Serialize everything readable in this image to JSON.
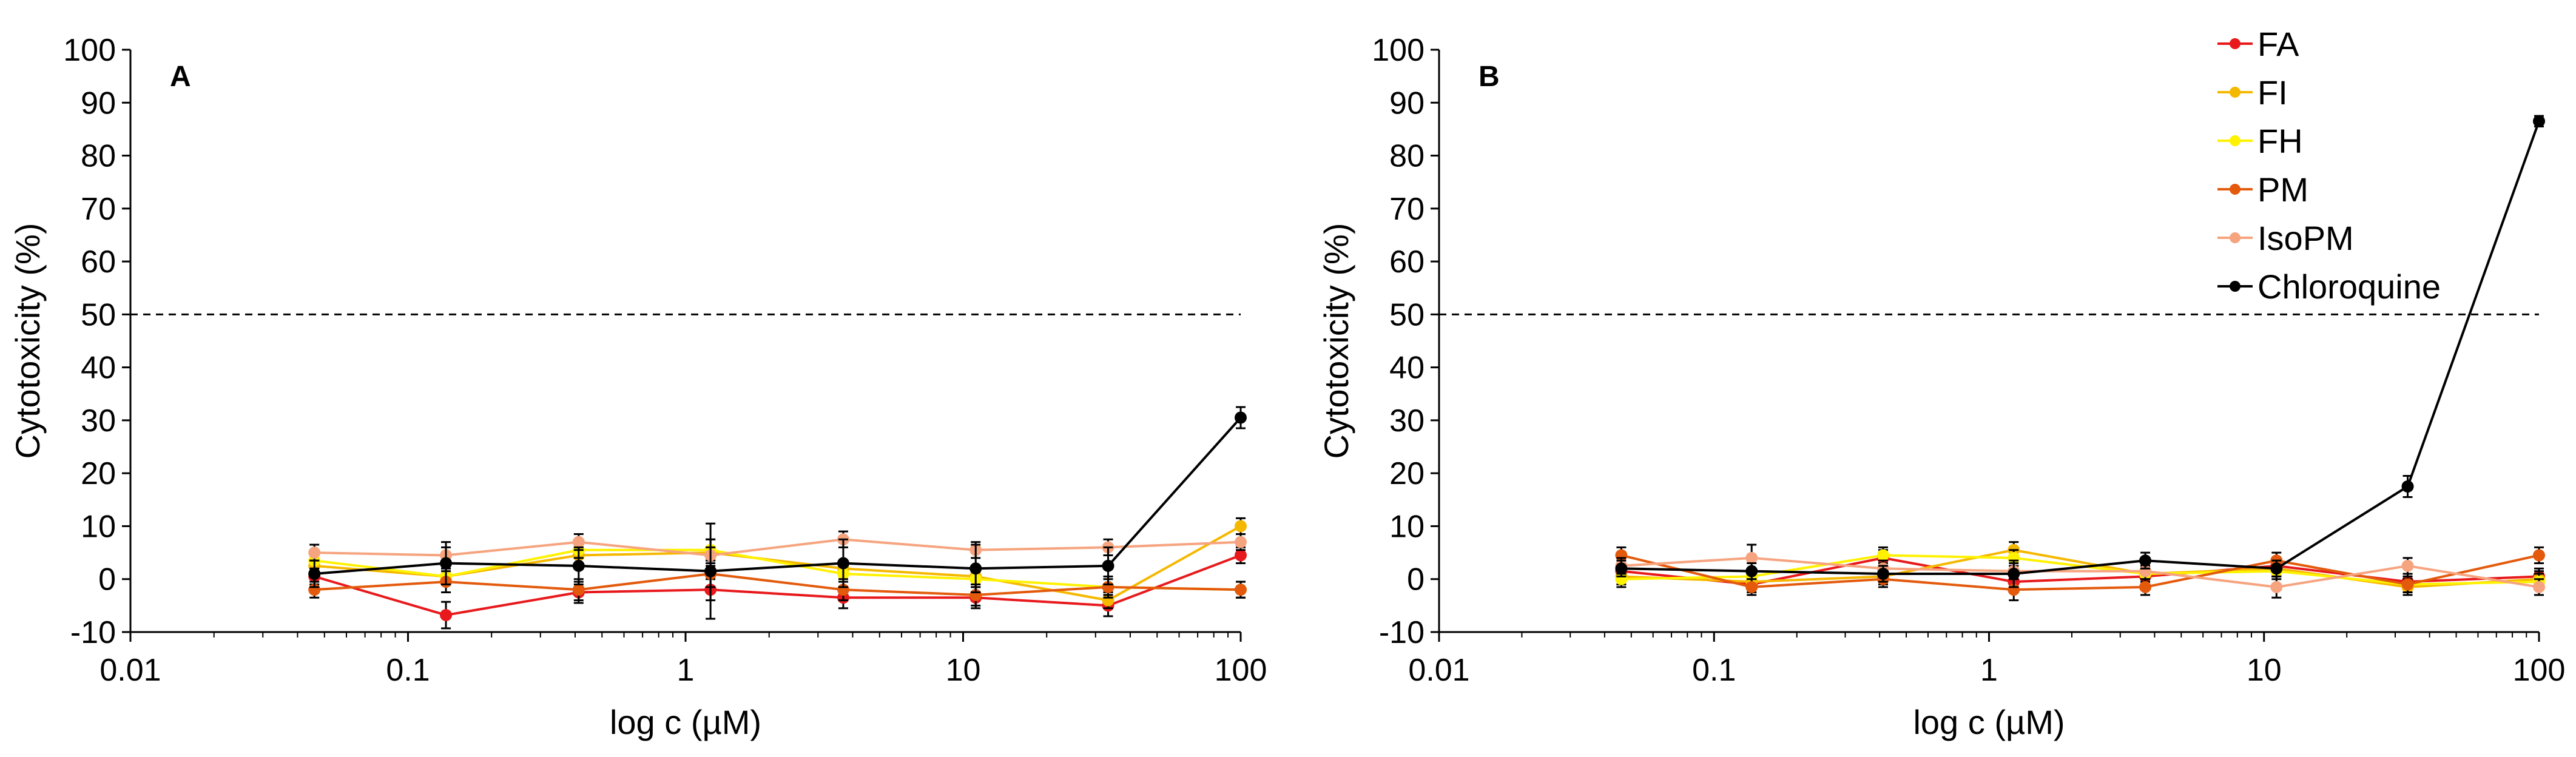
{
  "chart_data": [
    {
      "type": "line",
      "panel": "A",
      "xlabel": "log c (µM)",
      "ylabel": "Cytotoxicity (%)",
      "xscale": "log",
      "xlim": [
        0.01,
        100
      ],
      "ylim": [
        -10,
        100
      ],
      "x_ticks": [
        "0.01",
        "0.1",
        "1",
        "10",
        "100"
      ],
      "y_ticks": [
        "-10",
        "0",
        "10",
        "20",
        "30",
        "40",
        "50",
        "60",
        "70",
        "80",
        "90",
        "100"
      ],
      "reference_line": {
        "y": 50,
        "style": "dashed"
      },
      "x": [
        0.046,
        0.137,
        0.412,
        1.23,
        3.7,
        11.1,
        33.3,
        100
      ],
      "series": [
        {
          "name": "FA",
          "color": "#e8191c",
          "values": [
            0.5,
            -6.8,
            -2.5,
            -2.0,
            -3.5,
            -3.5,
            -5.0,
            4.5
          ],
          "errors": [
            1.5,
            2.5,
            2.0,
            2.0,
            2.0,
            2.0,
            2.0,
            1.5
          ]
        },
        {
          "name": "FI",
          "color": "#f5b800",
          "values": [
            2.5,
            0.5,
            4.5,
            5.0,
            2.0,
            0.5,
            -4.0,
            10.0
          ],
          "errors": [
            1.5,
            1.5,
            1.5,
            2.5,
            1.5,
            1.5,
            1.5,
            1.5
          ]
        },
        {
          "name": "FH",
          "color": "#fff200",
          "values": [
            3.5,
            0.5,
            5.5,
            5.5,
            1.0,
            0.0,
            -1.5,
            -2.0
          ],
          "errors": [
            1.5,
            1.5,
            1.5,
            2.0,
            1.5,
            1.5,
            1.5,
            1.5
          ]
        },
        {
          "name": "PM",
          "color": "#e35a0c",
          "values": [
            -2.0,
            -0.5,
            -2.0,
            1.0,
            -2.0,
            -3.0,
            -1.5,
            -2.0
          ],
          "errors": [
            1.5,
            2.0,
            2.0,
            2.5,
            2.0,
            2.0,
            2.0,
            1.5
          ]
        },
        {
          "name": "IsoPM",
          "color": "#f6a47f",
          "values": [
            5.0,
            4.5,
            7.0,
            4.5,
            7.5,
            5.5,
            6.0,
            7.0
          ],
          "errors": [
            1.5,
            1.5,
            1.5,
            1.5,
            1.5,
            1.5,
            1.5,
            1.5
          ]
        },
        {
          "name": "Chloroquine",
          "color": "#000000",
          "values": [
            1.0,
            3.0,
            2.5,
            1.5,
            3.0,
            2.0,
            2.5,
            30.5
          ],
          "errors": [
            2.5,
            4.0,
            3.5,
            9.0,
            4.5,
            4.5,
            3.5,
            2.0
          ]
        }
      ]
    },
    {
      "type": "line",
      "panel": "B",
      "xlabel": "log c (µM)",
      "ylabel": "Cytotoxicity (%)",
      "xscale": "log",
      "xlim": [
        0.01,
        100
      ],
      "ylim": [
        -10,
        100
      ],
      "x_ticks": [
        "0.01",
        "0.1",
        "1",
        "10",
        "100"
      ],
      "y_ticks": [
        "-10",
        "0",
        "10",
        "20",
        "30",
        "40",
        "50",
        "60",
        "70",
        "80",
        "90",
        "100"
      ],
      "reference_line": {
        "y": 50,
        "style": "dashed"
      },
      "x": [
        0.046,
        0.137,
        0.412,
        1.23,
        3.7,
        11.1,
        33.3,
        100
      ],
      "series": [
        {
          "name": "FA",
          "color": "#e8191c",
          "values": [
            1.5,
            -1.0,
            4.0,
            -0.5,
            0.5,
            2.5,
            -0.5,
            0.5
          ],
          "errors": [
            1.5,
            1.5,
            1.5,
            1.5,
            1.5,
            1.5,
            1.5,
            1.5
          ]
        },
        {
          "name": "FI",
          "color": "#f5b800",
          "values": [
            0.5,
            -0.5,
            0.5,
            5.5,
            1.0,
            2.0,
            -1.5,
            0.0
          ],
          "errors": [
            1.5,
            1.5,
            1.5,
            1.5,
            1.5,
            1.5,
            1.5,
            1.5
          ]
        },
        {
          "name": "FH",
          "color": "#fff200",
          "values": [
            0.0,
            0.5,
            4.5,
            4.0,
            1.0,
            1.5,
            -1.0,
            -0.5
          ],
          "errors": [
            1.5,
            1.5,
            1.5,
            1.5,
            1.5,
            1.5,
            1.5,
            1.5
          ]
        },
        {
          "name": "PM",
          "color": "#e35a0c",
          "values": [
            4.5,
            -1.5,
            0.0,
            -2.0,
            -1.5,
            3.5,
            -1.0,
            4.5
          ],
          "errors": [
            1.5,
            1.5,
            1.5,
            2.0,
            1.5,
            1.5,
            1.5,
            1.5
          ]
        },
        {
          "name": "IsoPM",
          "color": "#f6a47f",
          "values": [
            2.5,
            4.0,
            2.0,
            1.5,
            1.5,
            -1.5,
            2.5,
            -1.5
          ],
          "errors": [
            1.5,
            2.5,
            1.5,
            1.5,
            1.5,
            2.0,
            1.5,
            1.5
          ]
        },
        {
          "name": "Chloroquine",
          "color": "#000000",
          "values": [
            2.0,
            1.5,
            1.0,
            1.0,
            3.5,
            2.0,
            17.5,
            86.5
          ],
          "errors": [
            1.5,
            1.5,
            1.5,
            2.5,
            1.5,
            1.5,
            2.0,
            1.0
          ]
        }
      ]
    }
  ],
  "legend": {
    "placement": "top-right of panel B",
    "entries": [
      {
        "name": "FA",
        "color": "#e8191c"
      },
      {
        "name": "FI",
        "color": "#f5b800"
      },
      {
        "name": "FH",
        "color": "#fff200"
      },
      {
        "name": "PM",
        "color": "#e35a0c"
      },
      {
        "name": "IsoPM",
        "color": "#f6a47f"
      },
      {
        "name": "Chloroquine",
        "color": "#000000"
      }
    ]
  }
}
